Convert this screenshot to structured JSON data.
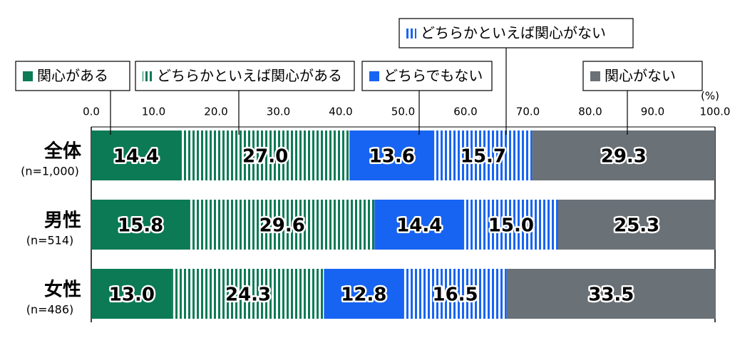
{
  "chart_data": {
    "type": "stacked-bar-horizontal",
    "unit": "(%)",
    "categories": [
      "全体",
      "男性",
      "女性"
    ],
    "sample_sizes": [
      "(n=1,000)",
      "(n=514)",
      "(n=486)"
    ],
    "xlim": [
      0,
      100
    ],
    "xticks": [
      {
        "value": 0,
        "label": "0.0"
      },
      {
        "value": 10,
        "label": "10.0"
      },
      {
        "value": 20,
        "label": "20.0"
      },
      {
        "value": 30,
        "label": "30.0"
      },
      {
        "value": 40,
        "label": "40.0"
      },
      {
        "value": 50,
        "label": "50.0"
      },
      {
        "value": 60,
        "label": "60.0"
      },
      {
        "value": 70,
        "label": "70.0"
      },
      {
        "value": 80,
        "label": "80.0"
      },
      {
        "value": 90,
        "label": "90.0"
      },
      {
        "value": 100,
        "label": "100.0"
      }
    ],
    "series": [
      {
        "name": "関心がある",
        "color": "#0b7a55",
        "pattern": "solid",
        "values": [
          14.4,
          15.8,
          13.0
        ],
        "value_labels": [
          "14.4",
          "15.8",
          "13.0"
        ]
      },
      {
        "name": "どちらかといえば関心がある",
        "color": "#0b7a55",
        "pattern": "stripes",
        "values": [
          27.0,
          29.6,
          24.3
        ],
        "value_labels": [
          "27.0",
          "29.6",
          "24.3"
        ]
      },
      {
        "name": "どちらでもない",
        "color": "#1764f2",
        "pattern": "solid",
        "values": [
          13.6,
          14.4,
          12.8
        ],
        "value_labels": [
          "13.6",
          "14.4",
          "12.8"
        ]
      },
      {
        "name": "どちらかといえば関心がない",
        "color": "#1764f2",
        "pattern": "stripes",
        "values": [
          15.7,
          15.0,
          16.5
        ],
        "value_labels": [
          "15.7",
          "15.0",
          "16.5"
        ]
      },
      {
        "name": "関心がない",
        "color": "#6a7177",
        "pattern": "solid",
        "values": [
          29.3,
          25.3,
          33.5
        ],
        "value_labels": [
          "29.3",
          "25.3",
          "33.5"
        ]
      }
    ]
  }
}
